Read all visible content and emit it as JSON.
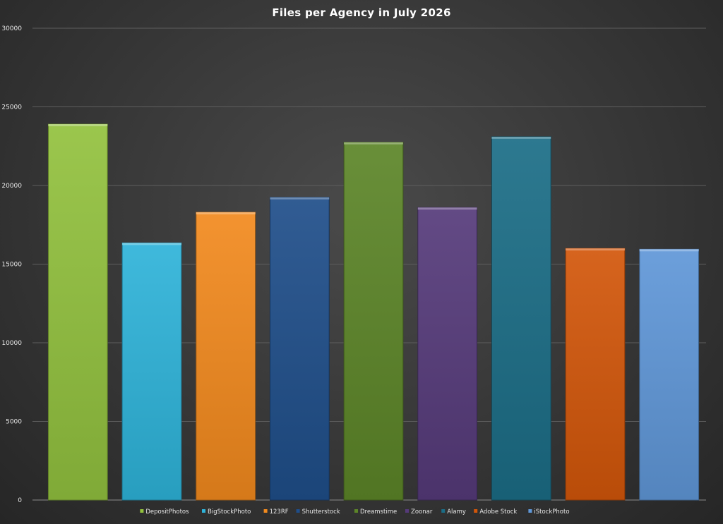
{
  "chart_data": {
    "type": "bar",
    "title": "Files per Agency in July 2026",
    "xlabel": "",
    "ylabel": "",
    "ylim": [
      0,
      30000
    ],
    "yticks": [
      0,
      5000,
      10000,
      15000,
      20000,
      25000,
      30000
    ],
    "grid": true,
    "legend_position": "bottom",
    "categories": [
      "DepositPhotos",
      "BigStockPhoto",
      "123RF",
      "Shutterstock",
      "Dreamstime",
      "Zoonar",
      "Alamy",
      "Adobe Stock",
      "iStockPhoto"
    ],
    "values": [
      23900,
      16350,
      18300,
      19250,
      22750,
      18600,
      23100,
      16000,
      15950
    ],
    "colors": [
      "#92c13e",
      "#2eb3d9",
      "#f28a1e",
      "#1f4e8a",
      "#5c8528",
      "#553a7a",
      "#1b6d86",
      "#d2560a",
      "#5f97d8"
    ]
  }
}
